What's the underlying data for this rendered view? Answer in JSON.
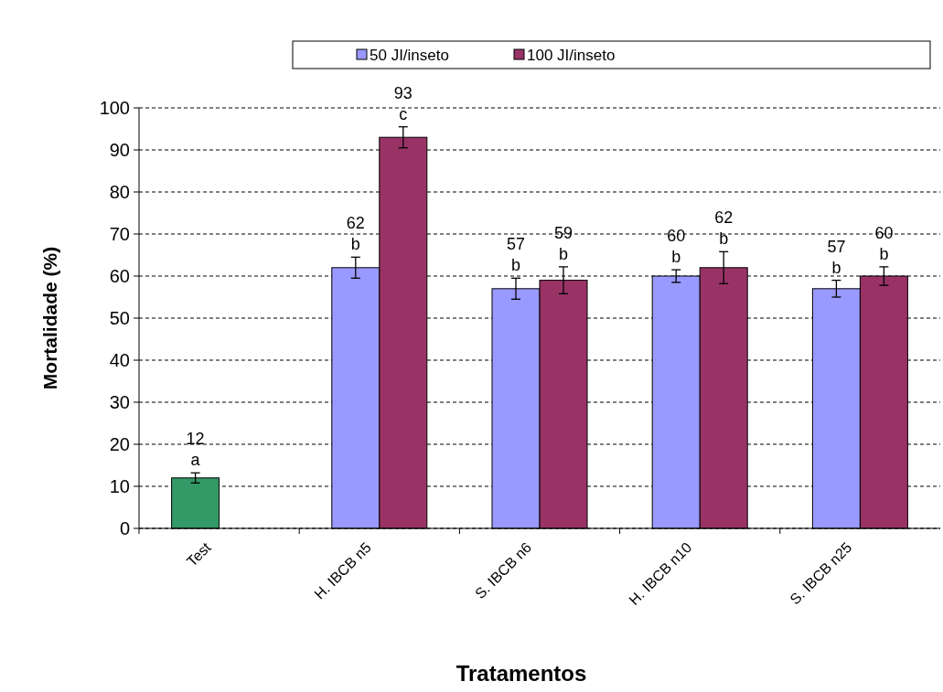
{
  "chart_data": {
    "type": "bar",
    "xlabel": "Tratamentos",
    "ylabel": "Mortalidade (%)",
    "categories": [
      "Test",
      "H. IBCB n5",
      "S. IBCB n6",
      "H. IBCB n10",
      "S. IBCB n25"
    ],
    "series": [
      {
        "name": "50 JI/inseto",
        "color": "#9999ff",
        "colors": [
          "#339966",
          "#9999ff",
          "#9999ff",
          "#9999ff",
          "#9999ff"
        ],
        "values": [
          12,
          62,
          57,
          60,
          57
        ],
        "errors": [
          1.2,
          2.5,
          2.5,
          1.5,
          2
        ],
        "value_labels": [
          "12\na",
          "62\nb",
          "57\nb",
          "60\nb",
          "57\nb"
        ]
      },
      {
        "name": "100 JI/inseto",
        "color": "#993366",
        "values": [
          null,
          93,
          59,
          62,
          60
        ],
        "errors": [
          null,
          2.5,
          3.2,
          3.8,
          2.2
        ],
        "value_labels": [
          null,
          "93\nc",
          "59\nb",
          "62\nb",
          "60\nb"
        ]
      }
    ],
    "ylim": [
      0,
      100
    ],
    "yticks": [
      0,
      10,
      20,
      30,
      40,
      50,
      60,
      70,
      80,
      90,
      100
    ],
    "grid": "y",
    "legend": "top"
  }
}
